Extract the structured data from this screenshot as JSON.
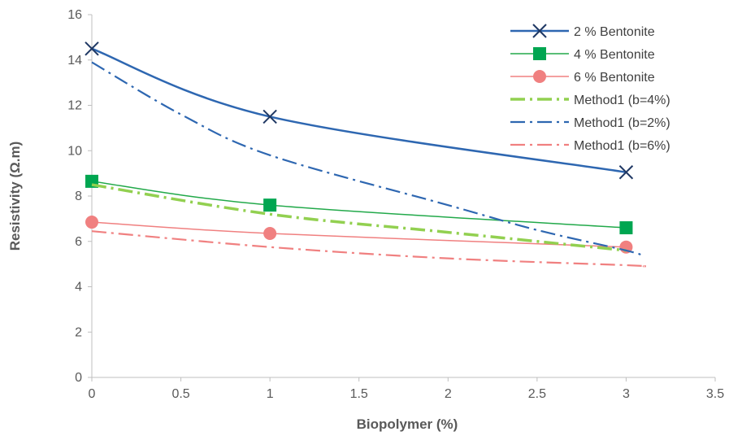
{
  "chart_data": {
    "type": "line",
    "xlabel": "Biopolymer (%)",
    "ylabel": "Resistivity (Ω.m)",
    "xlim": [
      0,
      3.5
    ],
    "ylim": [
      0,
      16
    ],
    "x_ticks": [
      "0",
      "0.5",
      "1",
      "1.5",
      "2",
      "2.5",
      "3",
      "3.5"
    ],
    "y_ticks": [
      "0",
      "2",
      "4",
      "6",
      "8",
      "10",
      "12",
      "14",
      "16"
    ],
    "grid": "off",
    "legend_position": "top-right",
    "series": [
      {
        "name": "2 % Bentonite",
        "color": "#2e67b1",
        "marker": "x",
        "line_style": "solid",
        "points": [
          [
            0,
            14.5
          ],
          [
            1,
            11.5
          ],
          [
            3,
            9.05
          ]
        ]
      },
      {
        "name": "4 % Bentonite",
        "color": "#22a94a",
        "marker": "square",
        "line_style": "solid",
        "points": [
          [
            0,
            8.65
          ],
          [
            1,
            7.6
          ],
          [
            3,
            6.6
          ]
        ]
      },
      {
        "name": "6 % Bentonite",
        "color": "#f08080",
        "marker": "circle",
        "line_style": "solid",
        "points": [
          [
            0,
            6.85
          ],
          [
            1,
            6.35
          ],
          [
            3,
            5.75
          ]
        ]
      },
      {
        "name": "Method1 (b=4%)",
        "color": "#92d050",
        "marker": "none",
        "line_style": "dash-dot",
        "points": [
          [
            0,
            8.5
          ],
          [
            1,
            7.2
          ],
          [
            2,
            6.4
          ],
          [
            3,
            5.6
          ]
        ]
      },
      {
        "name": "Method1 (b=2%)",
        "color": "#2e67b1",
        "marker": "none",
        "line_style": "dash-dot",
        "points": [
          [
            0,
            13.9
          ],
          [
            0.5,
            11.6
          ],
          [
            1,
            9.8
          ],
          [
            2,
            7.6
          ],
          [
            2.5,
            6.5
          ],
          [
            3,
            5.6
          ],
          [
            3.1,
            5.35
          ]
        ]
      },
      {
        "name": "Method1 (b=6%)",
        "color": "#f08080",
        "marker": "none",
        "line_style": "dash-dot",
        "points": [
          [
            0,
            6.45
          ],
          [
            1,
            5.75
          ],
          [
            2,
            5.25
          ],
          [
            3,
            4.95
          ],
          [
            3.1,
            4.9
          ]
        ]
      }
    ]
  }
}
